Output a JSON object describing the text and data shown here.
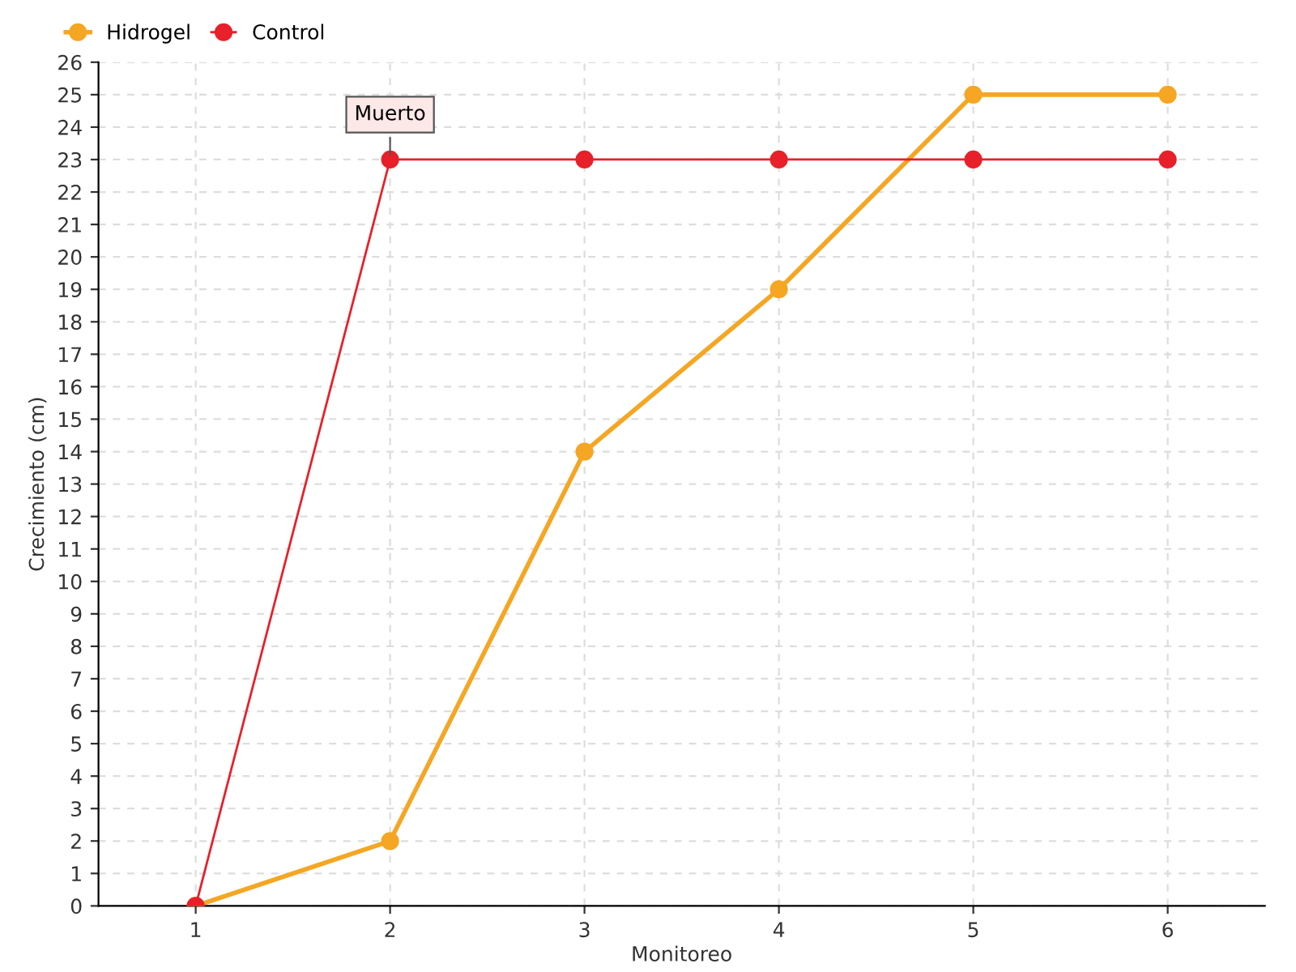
{
  "chart_data": {
    "type": "line",
    "xlabel": "Monitoreo",
    "ylabel": "Crecimiento (cm)",
    "categories": [
      "1",
      "2",
      "3",
      "4",
      "5",
      "6"
    ],
    "series": [
      {
        "name": "Hidrogel",
        "color": "#f5a623",
        "values": [
          0,
          2,
          14,
          19,
          25,
          25
        ]
      },
      {
        "name": "Control",
        "color": "#e8202a",
        "values": [
          0,
          23,
          23,
          23,
          23,
          23
        ]
      }
    ],
    "ylim": [
      0,
      26
    ],
    "yticks": [
      0,
      1,
      2,
      3,
      4,
      5,
      6,
      7,
      8,
      9,
      10,
      11,
      12,
      13,
      14,
      15,
      16,
      17,
      18,
      19,
      20,
      21,
      22,
      23,
      24,
      25,
      26
    ],
    "annotations": [
      {
        "text": "Muerto",
        "x": "2",
        "y": 23
      }
    ],
    "grid": true,
    "legend": "top left",
    "marker": "circle",
    "line_style": "solid"
  }
}
